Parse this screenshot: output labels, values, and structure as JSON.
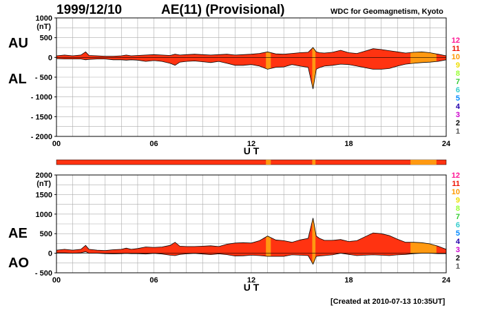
{
  "header": {
    "date": "1999/12/10",
    "title": "AE(11) (Provisional)",
    "institution": "WDC for Geomagnetism, Kyoto",
    "created": "[Created at 2010-07-13 10:35UT]"
  },
  "colors": {
    "activity_main": "#ff3311",
    "activity_alt": "#ff9911",
    "grid": "#aaaaaa",
    "scale_colors": [
      "#ff1493",
      "#ee1100",
      "#ff9900",
      "#eedd00",
      "#99ff33",
      "#33cc33",
      "#33cccc",
      "#0088ff",
      "#2200aa",
      "#cc00cc",
      "#000000",
      "#555555",
      "#aaaaaa"
    ]
  },
  "color_scale": {
    "levels": [
      "12",
      "11",
      "10",
      "9",
      "8",
      "7",
      "6",
      "5",
      "4",
      "3",
      "2",
      "1"
    ]
  },
  "chart_data": [
    {
      "type": "area",
      "name_top": "AU",
      "name_bottom": "AL",
      "xlabel": "U T",
      "ylabel": "(nT)",
      "xlim": [
        0,
        24
      ],
      "ylim": [
        -2000,
        1000
      ],
      "x_ticks": [
        "00",
        "06",
        "12",
        "18",
        "24"
      ],
      "y_ticks": [
        "1000",
        "500",
        "0",
        "- 500",
        "- 1000",
        "- 1500",
        "- 2000"
      ],
      "y_tick_values": [
        1000,
        500,
        0,
        -500,
        -1000,
        -1500,
        -2000
      ],
      "x": [
        0,
        0.5,
        1,
        1.5,
        1.8,
        2,
        2.5,
        3,
        3.5,
        4,
        4.3,
        4.6,
        5,
        5.5,
        6,
        6.5,
        7,
        7.3,
        7.6,
        8,
        8.5,
        9,
        9.5,
        10,
        10.5,
        11,
        11.5,
        12,
        12.5,
        13,
        13.5,
        14,
        14.5,
        15,
        15.5,
        15.8,
        16,
        16.2,
        16.5,
        17,
        17.5,
        18,
        18.5,
        19,
        19.5,
        20,
        20.5,
        21,
        21.5,
        22,
        22.5,
        23,
        23.5,
        24
      ],
      "upper": [
        40,
        60,
        40,
        60,
        140,
        50,
        40,
        30,
        30,
        40,
        60,
        40,
        50,
        60,
        70,
        60,
        50,
        80,
        60,
        70,
        80,
        70,
        60,
        70,
        80,
        60,
        70,
        80,
        100,
        140,
        90,
        80,
        100,
        120,
        130,
        250,
        140,
        120,
        110,
        130,
        180,
        120,
        100,
        160,
        220,
        200,
        170,
        140,
        110,
        130,
        140,
        120,
        80,
        40
      ],
      "lower": [
        -30,
        -40,
        -40,
        -40,
        -60,
        -50,
        -40,
        -40,
        -60,
        -60,
        -70,
        -60,
        -70,
        -100,
        -80,
        -100,
        -150,
        -200,
        -120,
        -100,
        -90,
        -110,
        -130,
        -100,
        -150,
        -200,
        -200,
        -180,
        -220,
        -300,
        -250,
        -240,
        -180,
        -220,
        -250,
        -800,
        -300,
        -260,
        -220,
        -200,
        -170,
        -180,
        -220,
        -260,
        -300,
        -300,
        -280,
        -220,
        -170,
        -150,
        -130,
        -120,
        -100,
        -60
      ]
    },
    {
      "type": "area",
      "name_top": "AE",
      "name_bottom": "AO",
      "xlabel": "U T",
      "ylabel": "(nT)",
      "xlim": [
        0,
        24
      ],
      "ylim": [
        -500,
        2000
      ],
      "x_ticks": [
        "00",
        "06",
        "12",
        "18",
        "24"
      ],
      "y_ticks": [
        "2000",
        "1500",
        "1000",
        "500",
        "0",
        "- 500"
      ],
      "y_tick_values": [
        2000,
        1500,
        1000,
        500,
        0,
        -500
      ],
      "x": [
        0,
        0.5,
        1,
        1.5,
        1.8,
        2,
        2.5,
        3,
        3.5,
        4,
        4.3,
        4.6,
        5,
        5.5,
        6,
        6.5,
        7,
        7.3,
        7.6,
        8,
        8.5,
        9,
        9.5,
        10,
        10.5,
        11,
        11.5,
        12,
        12.5,
        13,
        13.5,
        14,
        14.5,
        15,
        15.5,
        15.8,
        16,
        16.2,
        16.5,
        17,
        17.5,
        18,
        18.5,
        19,
        19.5,
        20,
        20.5,
        21,
        21.5,
        22,
        22.5,
        23,
        23.5,
        24
      ],
      "upper": [
        80,
        100,
        80,
        100,
        200,
        100,
        80,
        70,
        90,
        100,
        130,
        100,
        120,
        160,
        150,
        160,
        200,
        280,
        180,
        170,
        170,
        180,
        190,
        170,
        230,
        260,
        270,
        260,
        320,
        440,
        340,
        320,
        280,
        340,
        380,
        900,
        440,
        380,
        330,
        330,
        350,
        300,
        320,
        420,
        520,
        500,
        450,
        360,
        280,
        280,
        270,
        240,
        180,
        100
      ],
      "lower": [
        10,
        10,
        0,
        10,
        40,
        0,
        0,
        -10,
        -15,
        -10,
        -5,
        -10,
        -10,
        -20,
        -5,
        -20,
        -50,
        -60,
        -30,
        -15,
        -5,
        -20,
        -35,
        -15,
        -35,
        -70,
        -65,
        -50,
        -60,
        -80,
        -80,
        -80,
        -40,
        -50,
        -60,
        -280,
        -80,
        -70,
        -60,
        -40,
        0,
        -30,
        -60,
        -50,
        -40,
        -50,
        -60,
        -40,
        -30,
        -10,
        0,
        0,
        -10,
        -10
      ]
    }
  ],
  "highlight_segments": [
    {
      "from": 12.9,
      "to": 13.2,
      "color": "#ff9911"
    },
    {
      "from": 15.75,
      "to": 15.95,
      "color": "#ff9911"
    },
    {
      "from": 21.8,
      "to": 23.4,
      "color": "#ff9911"
    }
  ]
}
